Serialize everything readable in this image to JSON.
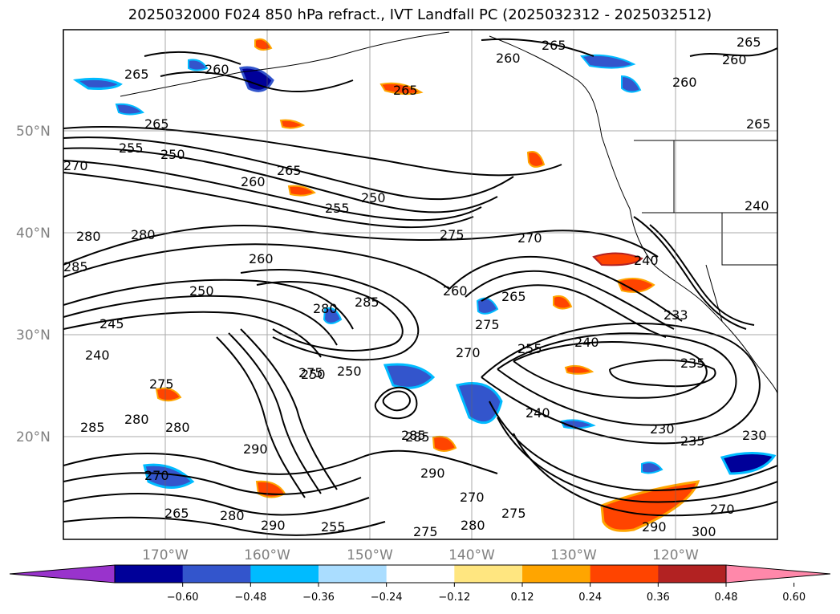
{
  "title": "2025032000 F024 850 hPa refract., IVT Landfall PC (2025032312 - 2025032512)",
  "map": {
    "lat_labels": [
      "50°N",
      "40°N",
      "30°N",
      "20°N"
    ],
    "lon_labels": [
      "170°W",
      "160°W",
      "150°W",
      "140°W",
      "130°W",
      "120°W"
    ],
    "contour_labels": [
      "265",
      "265",
      "260",
      "265",
      "260",
      "260",
      "265",
      "265",
      "265",
      "260",
      "255",
      "250",
      "270",
      "260",
      "265",
      "250",
      "255",
      "275",
      "270",
      "280",
      "280",
      "285",
      "260",
      "250",
      "285",
      "280",
      "260",
      "245",
      "240",
      "275",
      "270",
      "265",
      "255",
      "240",
      "235",
      "275",
      "285",
      "280",
      "280",
      "290",
      "285",
      "290",
      "240",
      "230",
      "235",
      "230",
      "270",
      "280",
      "290",
      "255",
      "285",
      "265",
      "275",
      "270",
      "300",
      "270",
      "275",
      "280",
      "290",
      "240",
      "240",
      "233",
      "275",
      "250",
      "250"
    ]
  },
  "colorbar": {
    "ticks": [
      "−0.60",
      "−0.48",
      "−0.36",
      "−0.24",
      "−0.12",
      "0.12",
      "0.24",
      "0.36",
      "0.48",
      "0.60"
    ],
    "colors": [
      "#9933cc",
      "#000099",
      "#3355cc",
      "#00bbff",
      "#aaddff",
      "#ffffff",
      "#ffe680",
      "#ffa500",
      "#ff4400",
      "#b22222",
      "#ff88aa"
    ],
    "extend_min_color": "#9933cc",
    "extend_max_color": "#ff88aa"
  }
}
